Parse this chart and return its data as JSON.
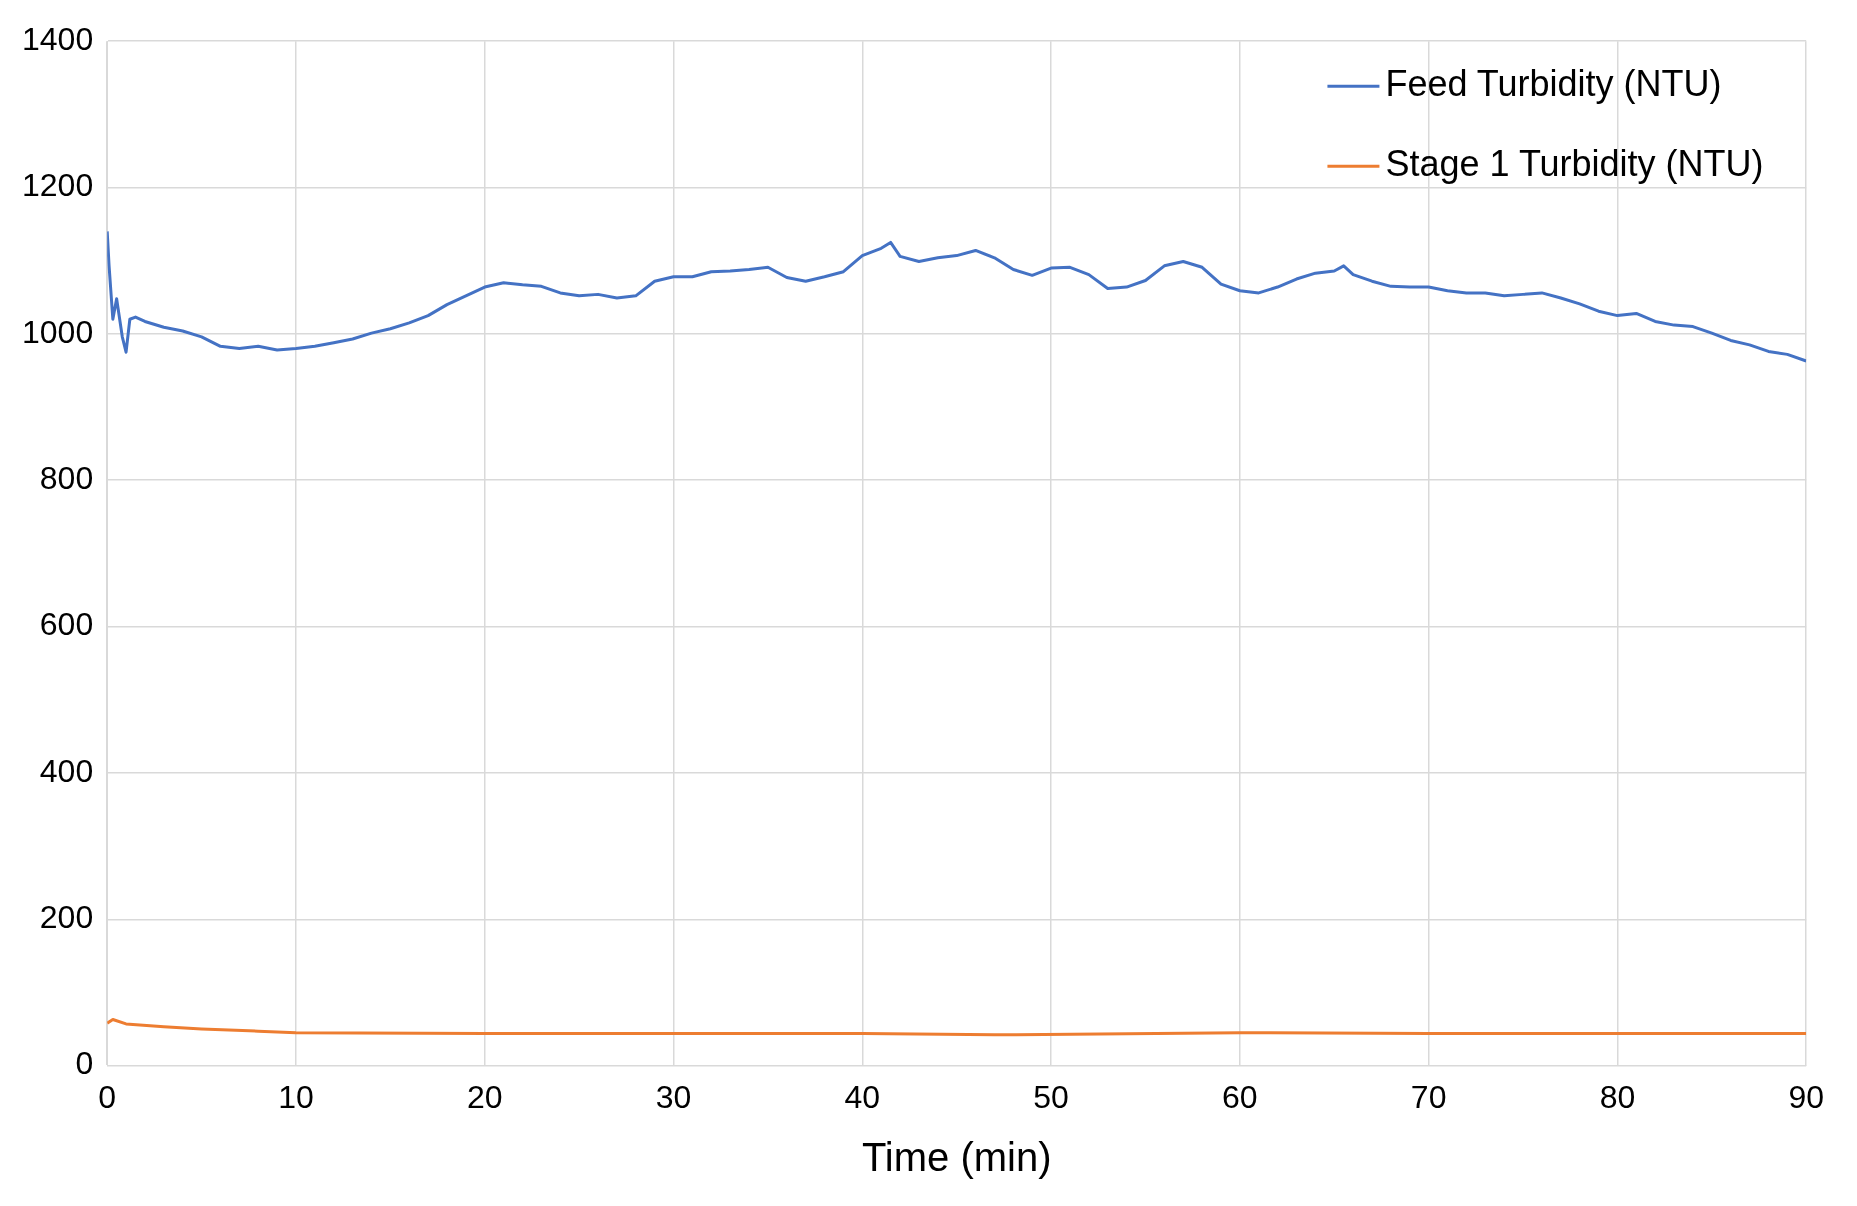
{
  "chart_data": {
    "type": "line",
    "xlabel": "Time (min)",
    "xlim": [
      0,
      90
    ],
    "xticks": [
      0,
      10,
      20,
      30,
      40,
      50,
      60,
      70,
      80,
      90
    ],
    "ylim": [
      0,
      1400
    ],
    "yticks": [
      0,
      200,
      400,
      600,
      800,
      1000,
      1200,
      1400
    ],
    "grid": true,
    "legend": "top right",
    "marker": "none",
    "line_style": "solid",
    "series": [
      {
        "name": "Feed Turbidity (NTU)",
        "color": "#4472c4",
        "x": [
          0,
          0.1,
          0.3,
          0.5,
          0.8,
          1,
          1.2,
          1.5,
          2,
          3,
          4,
          5,
          6,
          7,
          8,
          9,
          10,
          11,
          12,
          13,
          14,
          15,
          16,
          17,
          18,
          19,
          20,
          21,
          22,
          23,
          24,
          25,
          26,
          27,
          28,
          29,
          30,
          31,
          32,
          33,
          34,
          35,
          36,
          37,
          38,
          39,
          40,
          41,
          41.5,
          42,
          43,
          44,
          45,
          46,
          47,
          48,
          49,
          50,
          51,
          52,
          53,
          54,
          55,
          56,
          57,
          58,
          59,
          60,
          61,
          62,
          63,
          64,
          65,
          65.5,
          66,
          67,
          68,
          69,
          70,
          71,
          72,
          73,
          74,
          75,
          76,
          77,
          78,
          79,
          80,
          81,
          82,
          83,
          84,
          85,
          86,
          87,
          88,
          89,
          90
        ],
        "values": [
          1140,
          1093,
          1020,
          1048,
          996,
          975,
          1020,
          1023,
          1017,
          1009,
          1004,
          996,
          983,
          980,
          983,
          978,
          980,
          983,
          988,
          993,
          1001,
          1007,
          1015,
          1025,
          1040,
          1052,
          1064,
          1070,
          1067,
          1065,
          1056,
          1052,
          1054,
          1049,
          1052,
          1072,
          1078,
          1078,
          1085,
          1086,
          1088,
          1091,
          1077,
          1072,
          1078,
          1085,
          1107,
          1117,
          1125,
          1106,
          1099,
          1104,
          1107,
          1114,
          1104,
          1088,
          1080,
          1090,
          1091,
          1081,
          1062,
          1064,
          1073,
          1093,
          1099,
          1091,
          1068,
          1059,
          1056,
          1064,
          1075,
          1083,
          1086,
          1093,
          1081,
          1072,
          1065,
          1064,
          1064,
          1059,
          1056,
          1056,
          1052,
          1054,
          1056,
          1049,
          1041,
          1031,
          1025,
          1028,
          1017,
          1012,
          1010,
          1001,
          991,
          985,
          976,
          972,
          963
        ]
      },
      {
        "name": "Stage 1 Turbidity (NTU)",
        "color": "#ed7d31",
        "x": [
          0,
          0.3,
          1,
          3,
          5,
          8,
          10,
          20,
          30,
          40,
          47,
          60,
          70,
          90
        ],
        "values": [
          58,
          63,
          57,
          53,
          50,
          47,
          45,
          44,
          44,
          44,
          42,
          45,
          44,
          44
        ]
      }
    ]
  }
}
